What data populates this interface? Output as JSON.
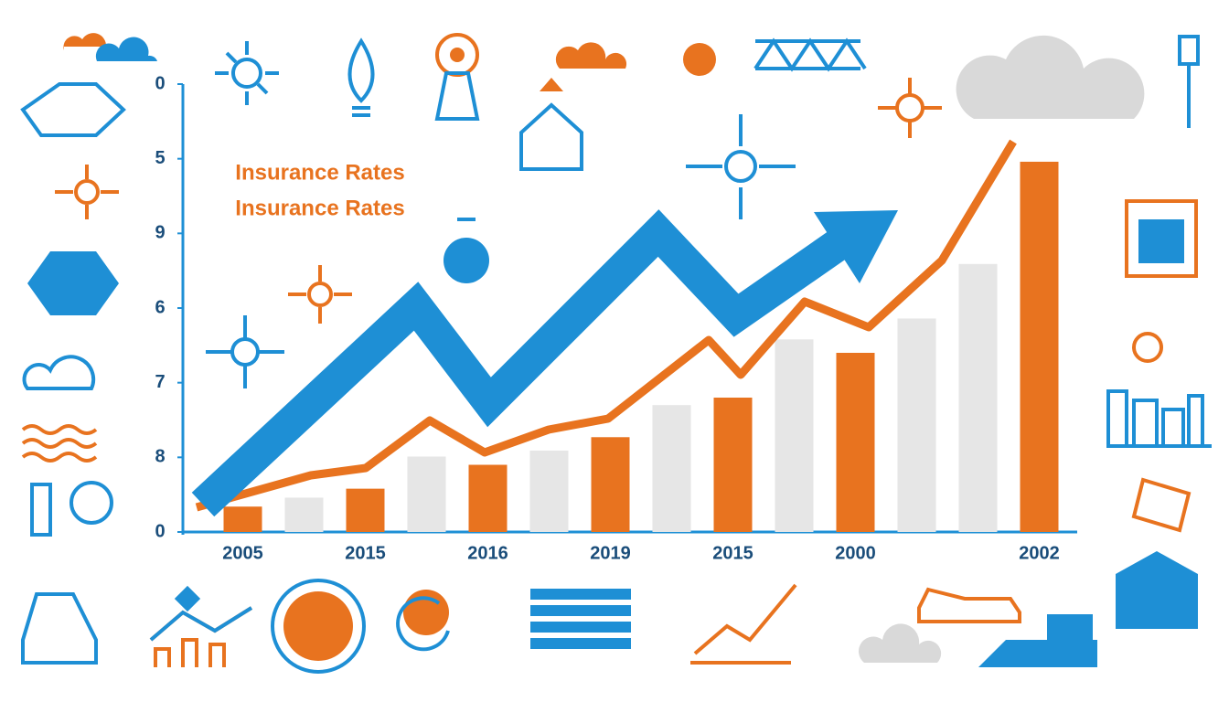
{
  "chart_data": {
    "type": "bar",
    "title": "Insurance Rates",
    "subtitle": "Insurance Rates",
    "categories": [
      "2005",
      null,
      "2015",
      null,
      "2016",
      null,
      "2019",
      null,
      "2015",
      null,
      "2000",
      null,
      null,
      "2002"
    ],
    "values": [
      0.34,
      0.46,
      0.58,
      1.01,
      0.9,
      1.09,
      1.27,
      1.7,
      1.8,
      2.58,
      2.4,
      2.86,
      3.59,
      4.96
    ],
    "colors": [
      "#e8731f",
      "#e6e6e6",
      "#e8731f",
      "#e6e6e6",
      "#e8731f",
      "#e6e6e6",
      "#e8731f",
      "#e6e6e6",
      "#e8731f",
      "#e6e6e6",
      "#e8731f",
      "#e6e6e6",
      "#e6e6e6",
      "#e8731f"
    ],
    "ylim": [
      0,
      6
    ],
    "yticks": [
      0,
      {
        "value": 1,
        "label": "8"
      },
      {
        "value": 2,
        "label": "7"
      },
      {
        "value": 3,
        "label": "6"
      },
      {
        "value": 4,
        "label": "9"
      },
      {
        "value": 5,
        "label": "5"
      },
      {
        "value": 6,
        "label": "0"
      }
    ],
    "grid": false
  }
}
